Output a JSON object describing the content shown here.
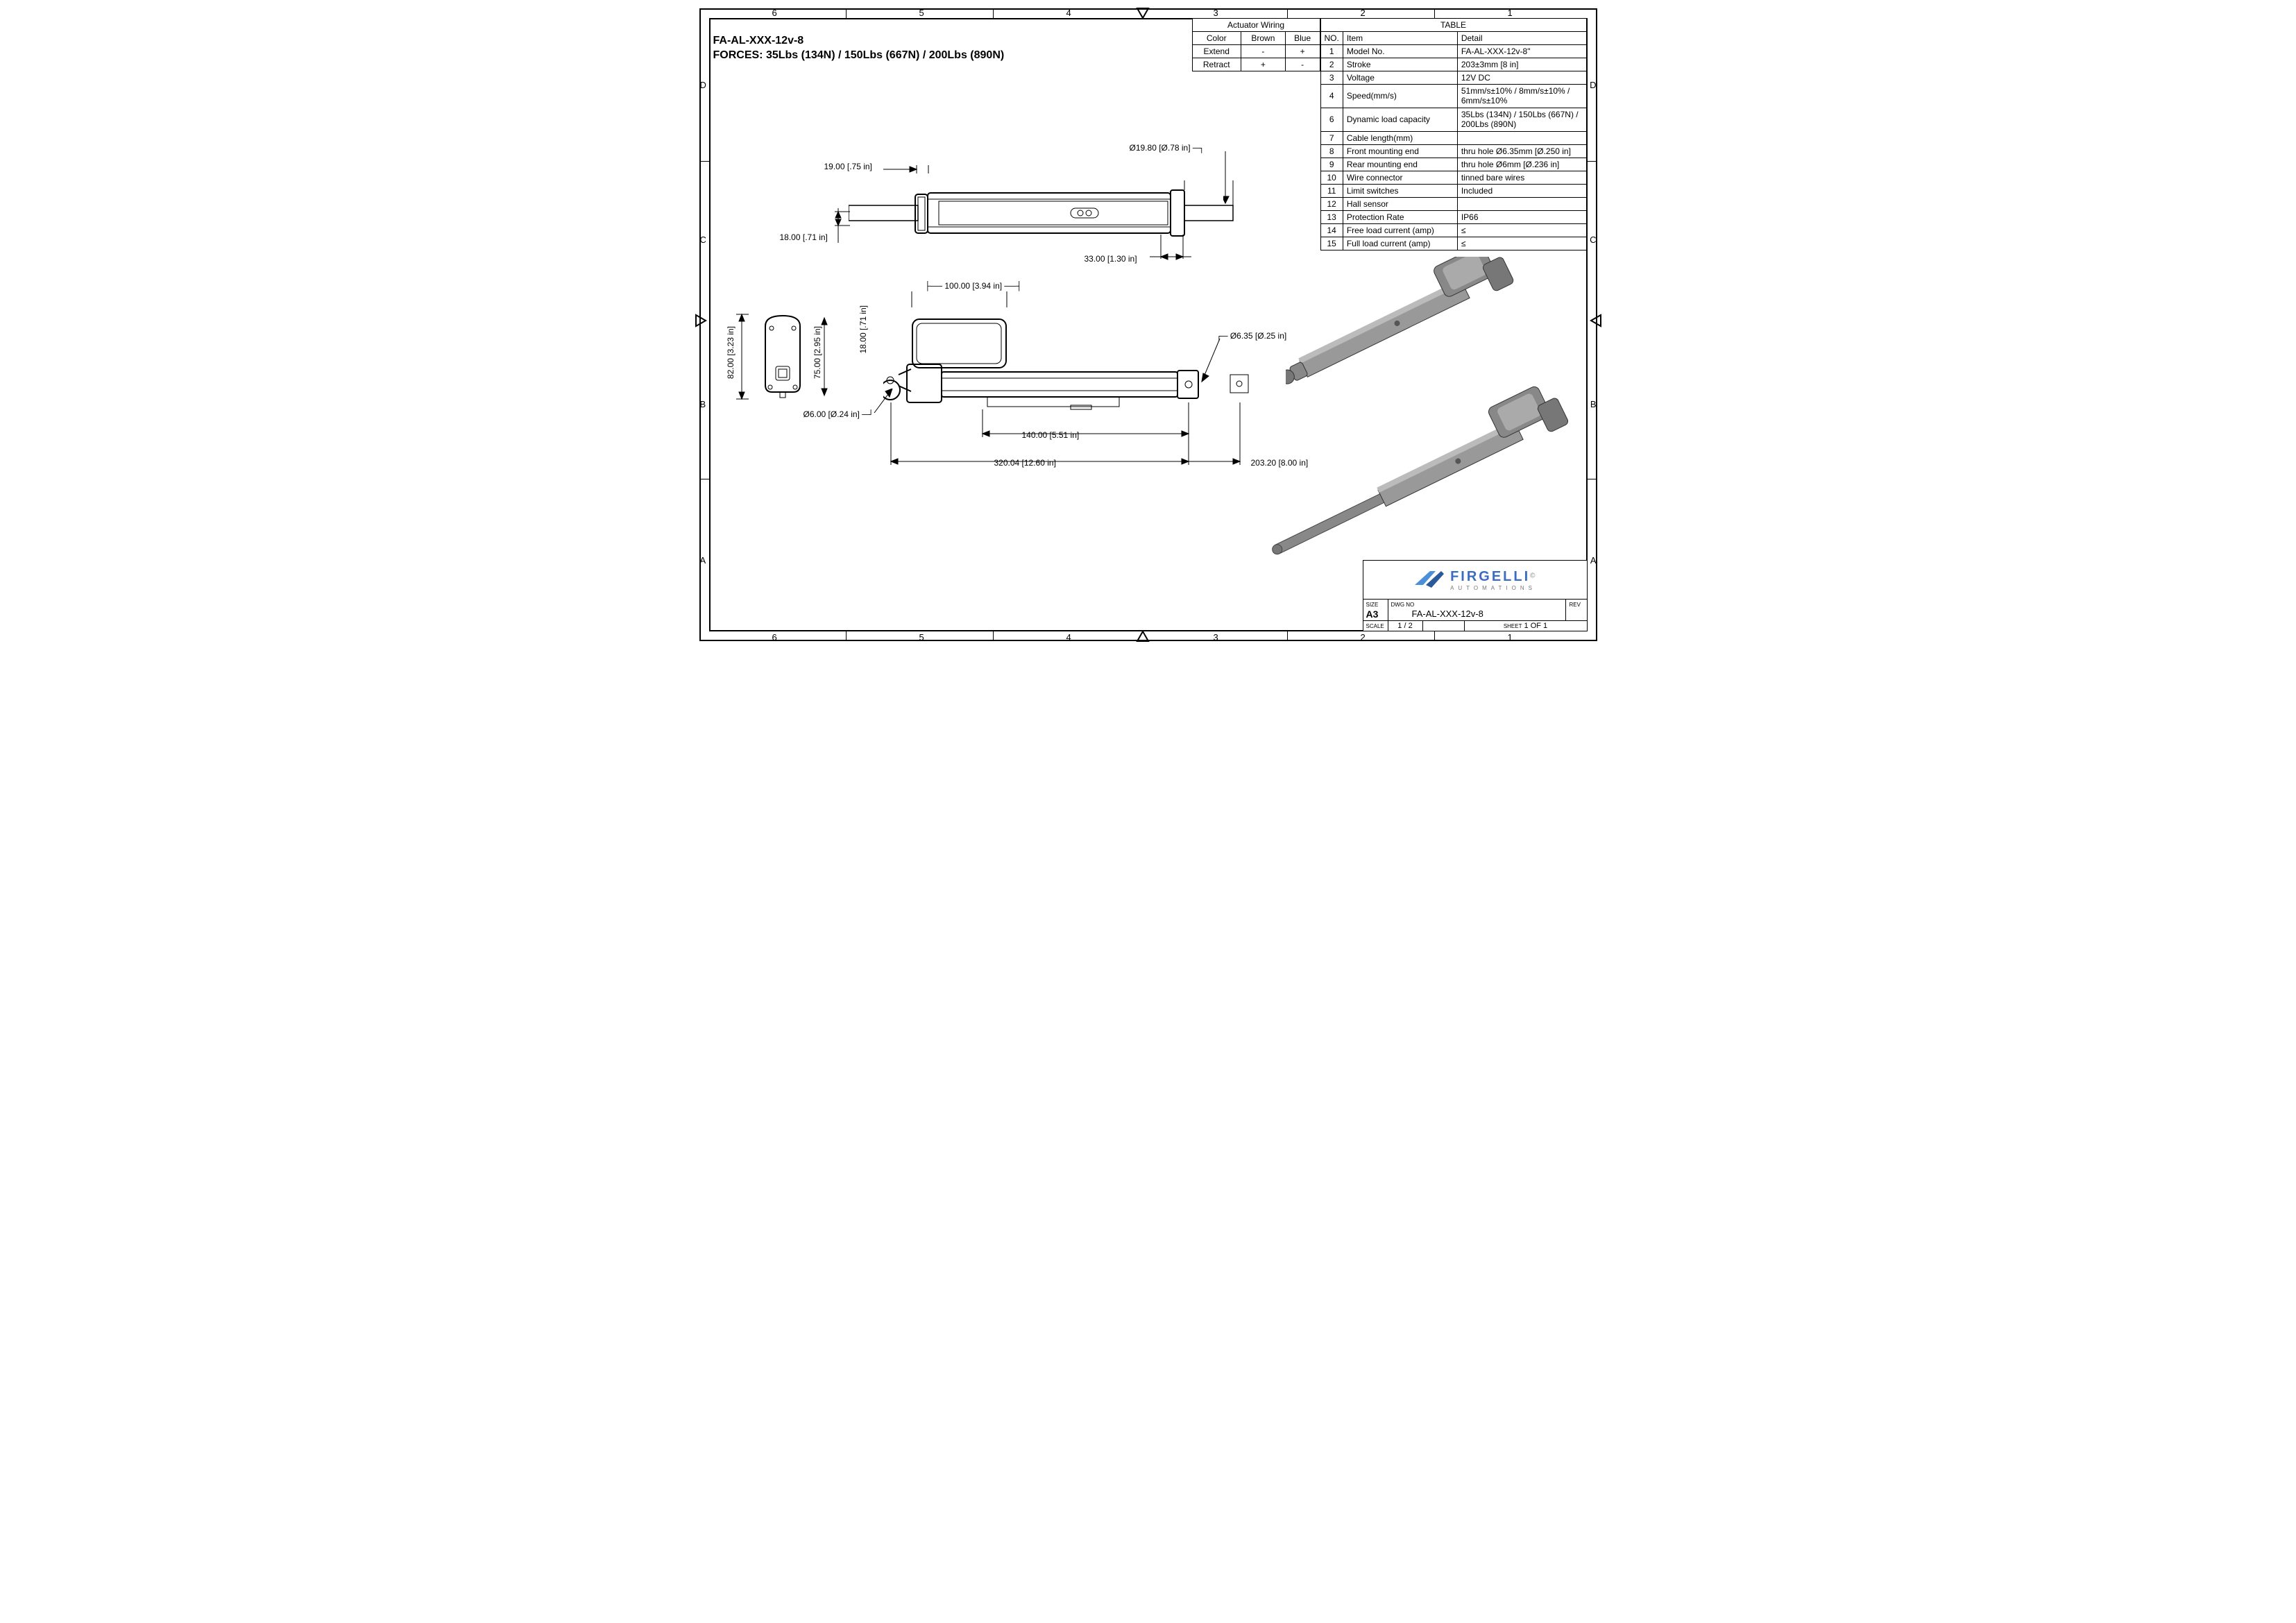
{
  "header": {
    "model": "FA-AL-XXX-12v-8",
    "forces": "FORCES: 35Lbs (134N) / 150Lbs (667N) / 200Lbs (890N)"
  },
  "wiring": {
    "title": "Actuator Wiring",
    "cols": [
      "Color",
      "Brown",
      "Blue"
    ],
    "rows": [
      [
        "Extend",
        "-",
        "+"
      ],
      [
        "Retract",
        "+",
        "-"
      ]
    ]
  },
  "spec": {
    "title": "TABLE",
    "cols": [
      "NO.",
      "Item",
      "Detail"
    ],
    "rows": [
      [
        "1",
        "Model No.",
        "FA-AL-XXX-12v-8\""
      ],
      [
        "2",
        "Stroke",
        "203±3mm [8 in]"
      ],
      [
        "3",
        "Voltage",
        "12V DC"
      ],
      [
        "4",
        "Speed(mm/s)",
        "51mm/s±10% / 8mm/s±10% / 6mm/s±10%"
      ],
      [
        "6",
        "Dynamic load capacity",
        "35Lbs (134N) / 150Lbs (667N) / 200Lbs (890N)"
      ],
      [
        "7",
        "Cable length(mm)",
        ""
      ],
      [
        "8",
        "Front mounting end",
        "thru hole Ø6.35mm [Ø.250 in]"
      ],
      [
        "9",
        "Rear mounting end",
        "thru hole Ø6mm [Ø.236 in]"
      ],
      [
        "10",
        "Wire connector",
        "tinned bare wires"
      ],
      [
        "11",
        "Limit switches",
        "Included"
      ],
      [
        "12",
        "Hall sensor",
        ""
      ],
      [
        "13",
        "Protection Rate",
        "IP66"
      ],
      [
        "14",
        "Free load current (amp)",
        "≤"
      ],
      [
        "15",
        "Full load current (amp)",
        "≤"
      ]
    ]
  },
  "dims": {
    "d1": "Ø19.80 [Ø.78 in]",
    "d2": "19.00 [.75 in]",
    "d3": "18.00 [.71 in]",
    "d4": "33.00 [1.30 in]",
    "d5": "100.00 [3.94 in]",
    "d6": "18.00 [.71 in]",
    "d7": "Ø6.35 [Ø.25 in]",
    "d8": "82.00 [3.23 in]",
    "d9": "75.00 [2.95 in]",
    "d10": "Ø6.00 [Ø.24 in]",
    "d11": "140.00 [5.51 in]",
    "d12": "320.04 [12.60 in]",
    "d13": "203.20 [8.00 in]"
  },
  "titleblock": {
    "brand": "FIRGELLI",
    "brand_sub": "AUTOMATIONS",
    "size_lbl": "SIZE",
    "size": "A3",
    "dwg_lbl": "DWG NO",
    "dwg": "FA-AL-XXX-12v-8",
    "rev_lbl": "REV",
    "scale_lbl": "SCALE",
    "scale": "1 / 2",
    "sheet_lbl": "SHEET",
    "sheet": "1  OF  1"
  },
  "zones": {
    "top": [
      "6",
      "5",
      "4",
      "3",
      "2",
      "1"
    ],
    "bottom": [
      "6",
      "5",
      "4",
      "3",
      "2",
      "1"
    ],
    "left": [
      "D",
      "C",
      "B",
      "A"
    ],
    "right": [
      "D",
      "C",
      "B",
      "A"
    ]
  },
  "colors": {
    "logo_blue": "#4a8fd8",
    "logo_text": "#4a6fa8",
    "iso_fill": "#9a9a9a"
  }
}
